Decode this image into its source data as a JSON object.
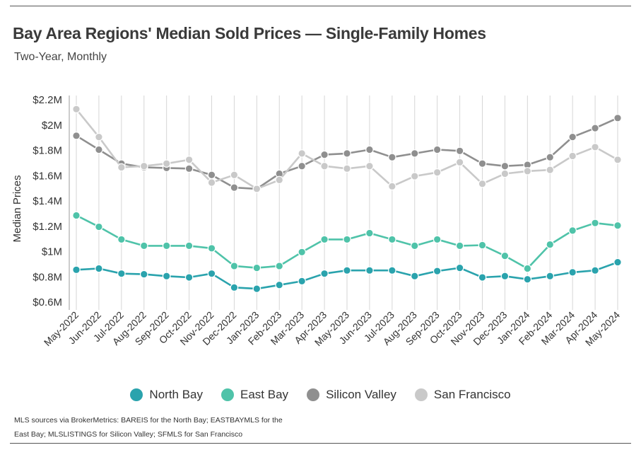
{
  "title": "Bay Area Regions' Median Sold Prices — Single-Family Homes",
  "subtitle": "Two-Year, Monthly",
  "source_note": "MLS sources via BrokerMetrics: BAREIS for the North Bay; EASTBAYMLS for the East Bay; MLSLISTINGS for Silicon Valley; SFMLS for San Francisco",
  "chart_data": {
    "type": "line",
    "title": "Bay Area Regions' Median Sold Prices — Single-Family Homes",
    "subtitle": "Two-Year, Monthly",
    "ylabel": "Median Prices",
    "xlabel": "",
    "ylim": [
      0.55,
      2.2
    ],
    "yticks": [
      0.6,
      0.8,
      1.0,
      1.2,
      1.4,
      1.6,
      1.8,
      2.0,
      2.2
    ],
    "ytick_labels": [
      "$0.6M",
      "$0.8M",
      "$1M",
      "$1.2M",
      "$1.4M",
      "$1.6M",
      "$1.8M",
      "$2M",
      "$2.2M"
    ],
    "grid": "vertical",
    "legend_position": "bottom",
    "categories": [
      "May-2022",
      "Jun-2022",
      "Jul-2022",
      "Aug-2022",
      "Sep-2022",
      "Oct-2022",
      "Nov-2022",
      "Dec-2022",
      "Jan-2023",
      "Feb-2023",
      "Mar-2023",
      "Apr-2023",
      "May-2023",
      "Jun-2023",
      "Jul-2023",
      "Aug-2023",
      "Sep-2023",
      "Oct-2023",
      "Nov-2023",
      "Dec-2023",
      "Jan-2024",
      "Feb-2024",
      "Mar-2024",
      "Apr-2024",
      "May-2024"
    ],
    "series": [
      {
        "name": "North Bay",
        "color": "#2aa3ad",
        "values": [
          0.85,
          0.86,
          0.82,
          0.815,
          0.8,
          0.79,
          0.82,
          0.71,
          0.7,
          0.73,
          0.76,
          0.82,
          0.845,
          0.845,
          0.845,
          0.8,
          0.84,
          0.865,
          0.79,
          0.8,
          0.775,
          0.8,
          0.83,
          0.845,
          0.91
        ]
      },
      {
        "name": "East Bay",
        "color": "#4fc3a9",
        "values": [
          1.28,
          1.19,
          1.09,
          1.04,
          1.04,
          1.04,
          1.02,
          0.88,
          0.865,
          0.88,
          0.99,
          1.09,
          1.09,
          1.14,
          1.09,
          1.04,
          1.09,
          1.04,
          1.045,
          0.96,
          0.86,
          1.05,
          1.16,
          1.22,
          1.2
        ]
      },
      {
        "name": "Silicon Valley",
        "color": "#8f8f8f",
        "values": [
          1.91,
          1.8,
          1.69,
          1.66,
          1.655,
          1.65,
          1.6,
          1.5,
          1.49,
          1.61,
          1.67,
          1.76,
          1.77,
          1.8,
          1.74,
          1.77,
          1.8,
          1.79,
          1.69,
          1.67,
          1.68,
          1.74,
          1.9,
          1.97,
          2.05
        ]
      },
      {
        "name": "San Francisco",
        "color": "#c9c9c9",
        "values": [
          2.12,
          1.9,
          1.66,
          1.67,
          1.69,
          1.72,
          1.54,
          1.6,
          1.49,
          1.56,
          1.77,
          1.67,
          1.65,
          1.67,
          1.51,
          1.59,
          1.62,
          1.7,
          1.53,
          1.61,
          1.63,
          1.64,
          1.75,
          1.82,
          1.72
        ]
      }
    ]
  }
}
